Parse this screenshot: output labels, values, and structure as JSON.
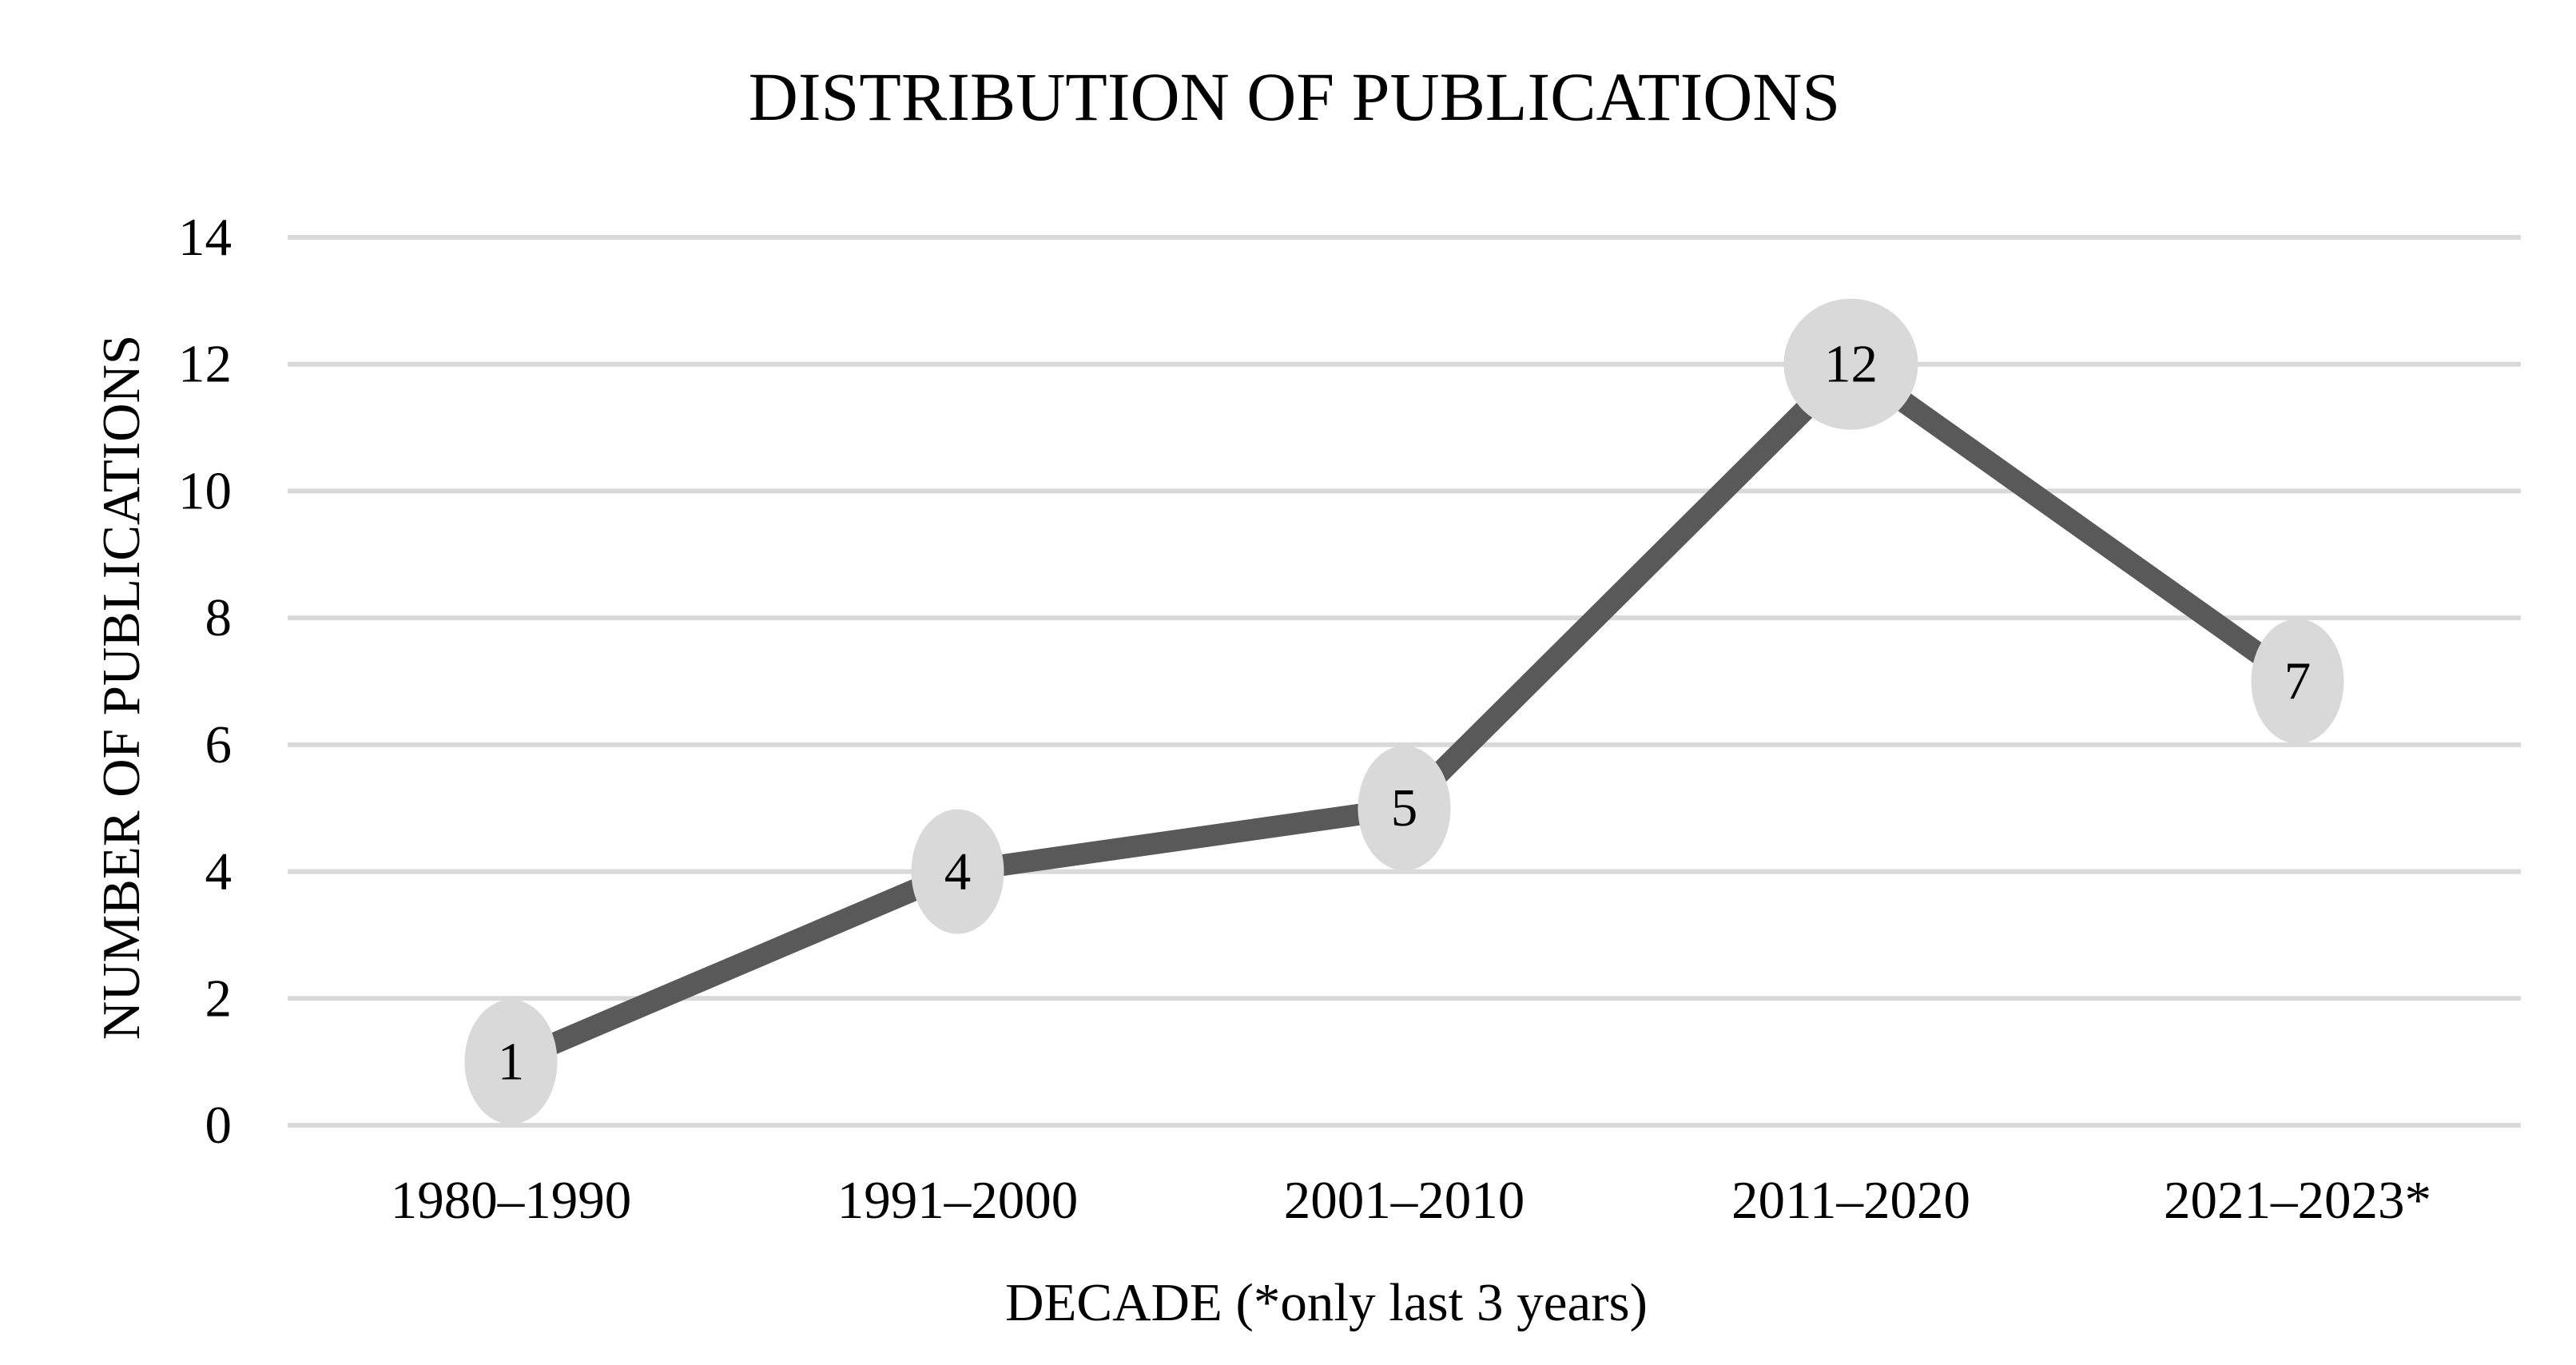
{
  "chart_data": {
    "type": "line",
    "title": "DISTRIBUTION OF PUBLICATIONS",
    "xlabel": "DECADE (*only last 3 years)",
    "ylabel": "NUMBER OF PUBLICATIONS",
    "categories": [
      "1980–1990",
      "1991–2000",
      "2001–2010",
      "2011–2020",
      "2021–2023*"
    ],
    "series": [
      {
        "name": "publications-per-decade",
        "values": [
          1,
          4,
          5,
          12,
          7
        ]
      }
    ],
    "data_labels": [
      "1",
      "4",
      "5",
      "12",
      "7"
    ],
    "ylim": [
      0,
      14
    ],
    "yticks": [
      0,
      2,
      4,
      6,
      8,
      10,
      12,
      14
    ],
    "grid": "horizontal-only",
    "legend": "none",
    "marker": "oval-data-label-bubble"
  },
  "colors": {
    "line": "#595959",
    "data_label_bubble": "#D9D9D9",
    "gridline": "#D9D9D9",
    "text": "#000000",
    "background": "#FFFFFF"
  }
}
